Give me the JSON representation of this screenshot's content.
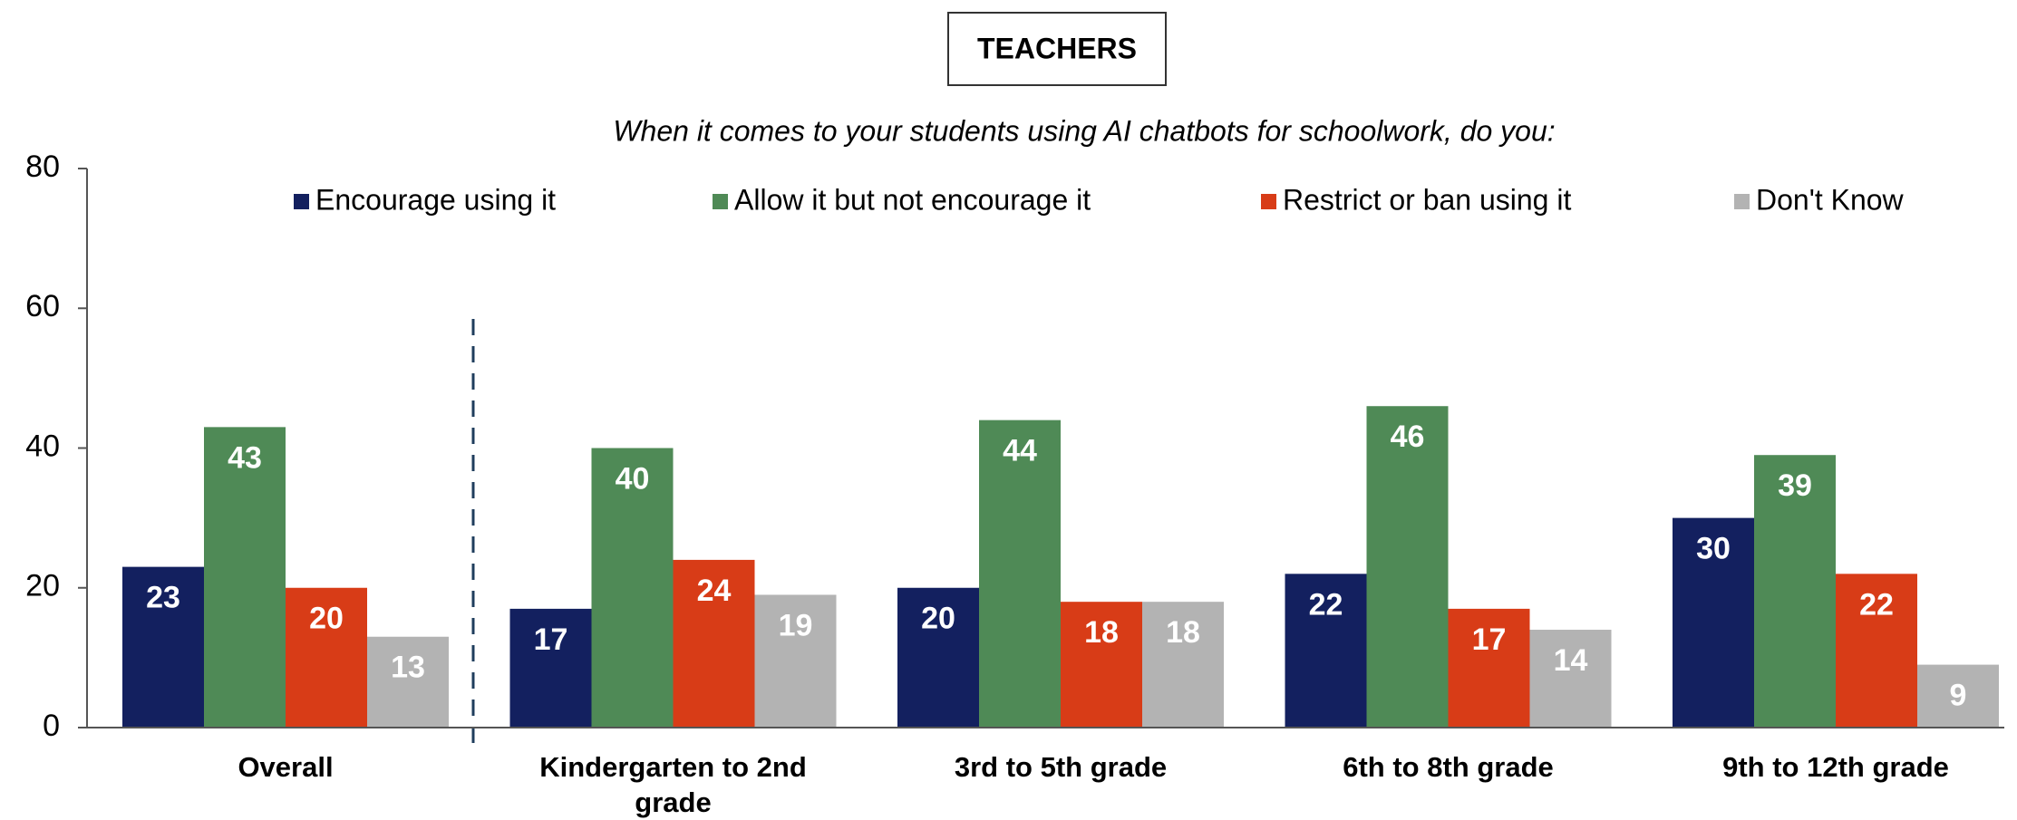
{
  "chart_data": {
    "type": "bar",
    "title": "TEACHERS",
    "subtitle": "When it comes to your students using AI chatbots for schoolwork, do you:",
    "categories": [
      "Overall",
      "Kindergarten to 2nd grade",
      "3rd to 5th grade",
      "6th to 8th grade",
      "9th to 12th grade"
    ],
    "series": [
      {
        "name": "Encourage using it",
        "color": "#13205f",
        "values": [
          23,
          17,
          20,
          22,
          30
        ]
      },
      {
        "name": "Allow it but not encourage it",
        "color": "#4f8a56",
        "values": [
          43,
          40,
          44,
          46,
          39
        ]
      },
      {
        "name": "Restrict or ban using it",
        "color": "#d83c17",
        "values": [
          20,
          24,
          18,
          17,
          22
        ]
      },
      {
        "name": "Don't Know",
        "color": "#b3b3b3",
        "values": [
          13,
          19,
          18,
          14,
          9
        ]
      }
    ],
    "ylim": [
      0,
      80
    ],
    "yticks": [
      0,
      20,
      40,
      60,
      80
    ],
    "grid": false,
    "legend": "top"
  }
}
